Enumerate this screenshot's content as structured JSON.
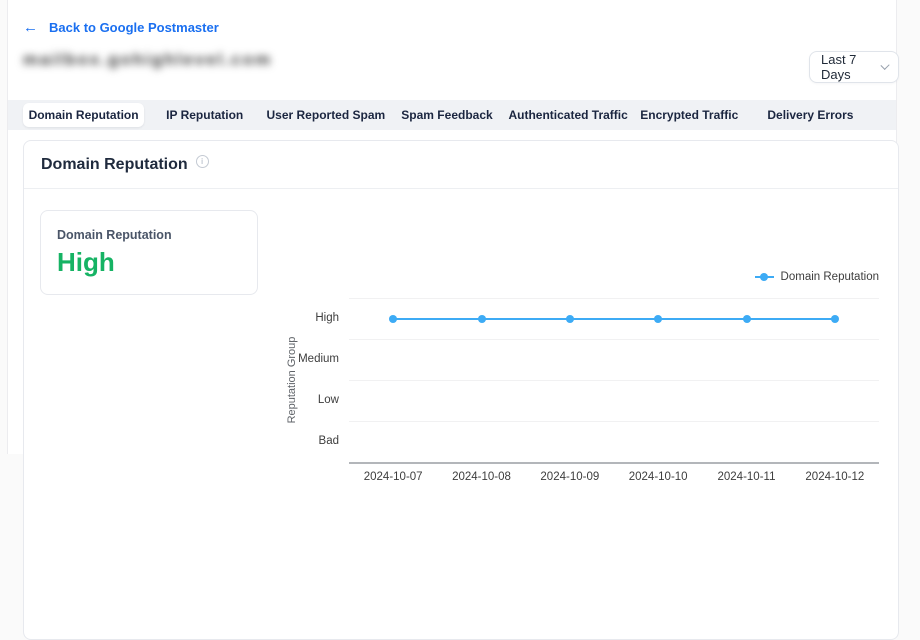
{
  "header": {
    "back_arrow": "←",
    "back_label": "Back to Google Postmaster",
    "domain_masked": "mailbox.gohighlevel.com",
    "date_range_value": "Last 7 Days"
  },
  "tabs": [
    {
      "label": "Domain Reputation",
      "active": true
    },
    {
      "label": "IP Reputation",
      "active": false
    },
    {
      "label": "User Reported Spam",
      "active": false
    },
    {
      "label": "Spam Feedback",
      "active": false
    },
    {
      "label": "Authenticated Traffic",
      "active": false
    },
    {
      "label": "Encrypted Traffic",
      "active": false
    },
    {
      "label": "Delivery Errors",
      "active": false
    }
  ],
  "panel_title": "Domain Reputation",
  "summary_card": {
    "label": "Domain Reputation",
    "value": "High",
    "value_color": "#16b364"
  },
  "chart_data": {
    "type": "line",
    "title": "",
    "x": [
      "2024-10-07",
      "2024-10-08",
      "2024-10-09",
      "2024-10-10",
      "2024-10-11",
      "2024-10-12"
    ],
    "y_categories": [
      "High",
      "Medium",
      "Low",
      "Bad"
    ],
    "series": [
      {
        "name": "Domain Reputation",
        "values": [
          "High",
          "High",
          "High",
          "High",
          "High",
          "High"
        ],
        "color": "#3dabf5"
      }
    ],
    "xlabel": "",
    "ylabel": "Reputation Group",
    "grid": true,
    "legend_position": "top-right"
  }
}
